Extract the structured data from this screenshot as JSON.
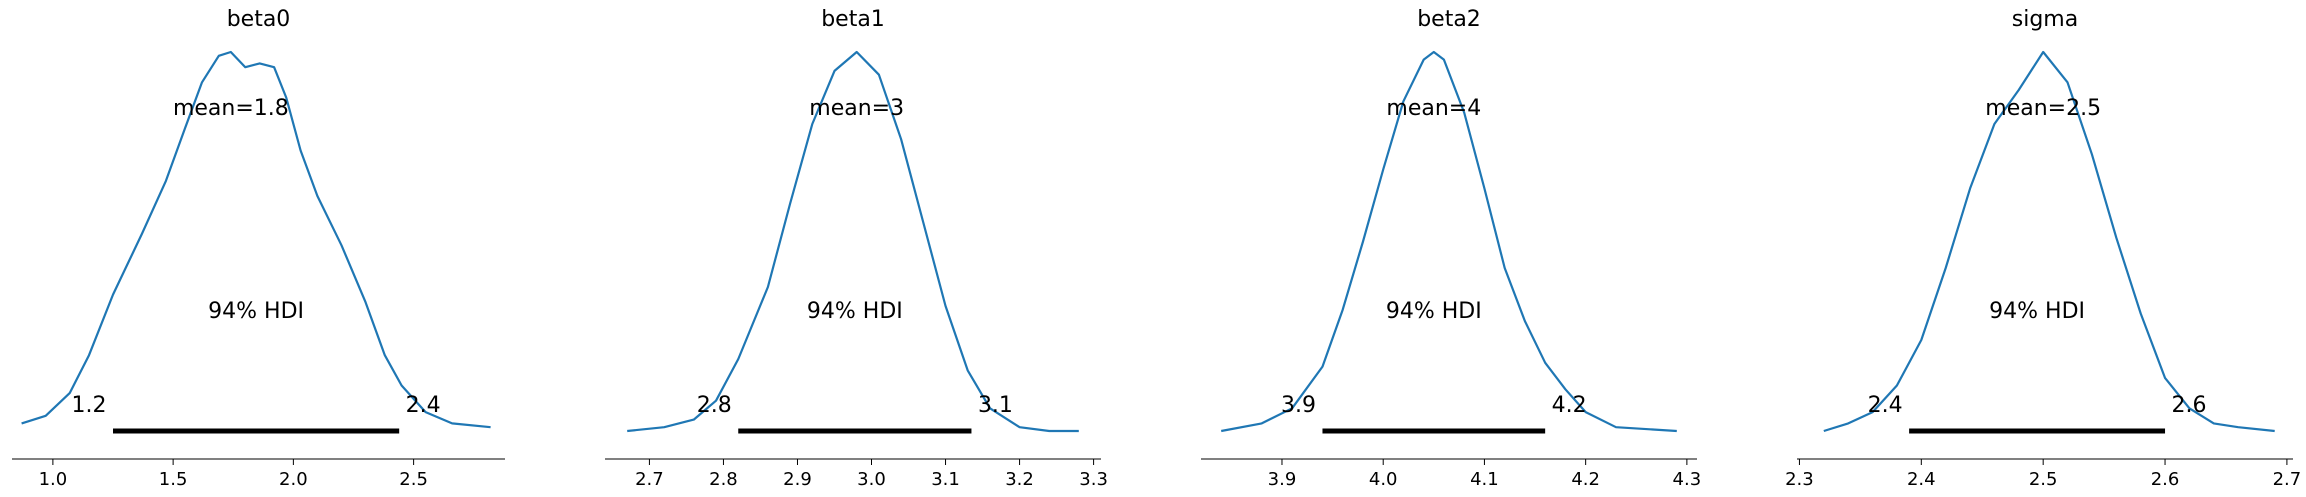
{
  "colors": {
    "curve": "#1f77b4",
    "hdi_bar": "#000000",
    "text": "#000000",
    "background": "#ffffff"
  },
  "chart_data": [
    {
      "type": "line",
      "title": "beta0",
      "mean_label": "mean=1.8",
      "hdi_label": "94% HDI",
      "hdi_low_label": "1.2",
      "hdi_high_label": "2.4",
      "hdi": [
        1.25,
        2.44
      ],
      "xlim": [
        0.83,
        2.88
      ],
      "xticks": [
        1.0,
        1.5,
        2.0,
        2.5
      ],
      "xtick_labels": [
        "1.0",
        "1.5",
        "2.0",
        "2.5"
      ],
      "x": [
        0.87,
        0.97,
        1.07,
        1.15,
        1.25,
        1.37,
        1.47,
        1.55,
        1.62,
        1.69,
        1.74,
        1.8,
        1.86,
        1.92,
        1.97,
        2.03,
        2.1,
        2.2,
        2.3,
        2.38,
        2.45,
        2.55,
        2.66,
        2.82
      ],
      "density": [
        0.02,
        0.04,
        0.1,
        0.2,
        0.36,
        0.52,
        0.66,
        0.8,
        0.92,
        0.99,
        1.0,
        0.96,
        0.97,
        0.96,
        0.88,
        0.74,
        0.62,
        0.49,
        0.34,
        0.2,
        0.12,
        0.05,
        0.02,
        0.01
      ]
    },
    {
      "type": "line",
      "title": "beta1",
      "mean_label": "mean=3",
      "hdi_label": "94% HDI",
      "hdi_low_label": "2.8",
      "hdi_high_label": "3.1",
      "hdi": [
        2.82,
        3.135
      ],
      "xlim": [
        2.64,
        3.31
      ],
      "xticks": [
        2.7,
        2.8,
        2.9,
        3.0,
        3.1,
        3.2,
        3.3
      ],
      "xtick_labels": [
        "2.7",
        "2.8",
        "2.9",
        "3.0",
        "3.1",
        "3.2",
        "3.3"
      ],
      "x": [
        2.67,
        2.72,
        2.76,
        2.79,
        2.82,
        2.86,
        2.89,
        2.92,
        2.95,
        2.98,
        3.01,
        3.04,
        3.07,
        3.1,
        3.13,
        3.16,
        3.2,
        3.24,
        3.28
      ],
      "density": [
        0.0,
        0.01,
        0.03,
        0.08,
        0.19,
        0.38,
        0.6,
        0.81,
        0.95,
        1.0,
        0.94,
        0.77,
        0.55,
        0.33,
        0.16,
        0.06,
        0.01,
        0.0,
        0.0
      ]
    },
    {
      "type": "line",
      "title": "beta2",
      "mean_label": "mean=4",
      "hdi_label": "94% HDI",
      "hdi_low_label": "3.9",
      "hdi_high_label": "4.2",
      "hdi": [
        3.94,
        4.16
      ],
      "xlim": [
        3.82,
        4.31
      ],
      "xticks": [
        3.9,
        4.0,
        4.1,
        4.2,
        4.3
      ],
      "xtick_labels": [
        "3.9",
        "4.0",
        "4.1",
        "4.2",
        "4.3"
      ],
      "x": [
        3.84,
        3.88,
        3.91,
        3.94,
        3.96,
        3.98,
        4.0,
        4.02,
        4.04,
        4.05,
        4.06,
        4.08,
        4.1,
        4.12,
        4.14,
        4.16,
        4.18,
        4.2,
        4.23,
        4.29
      ],
      "density": [
        0.0,
        0.02,
        0.06,
        0.17,
        0.32,
        0.5,
        0.69,
        0.87,
        0.98,
        1.0,
        0.98,
        0.84,
        0.64,
        0.43,
        0.29,
        0.18,
        0.11,
        0.05,
        0.01,
        0.0
      ]
    },
    {
      "type": "line",
      "title": "sigma",
      "mean_label": "mean=2.5",
      "hdi_label": "94% HDI",
      "hdi_low_label": "2.4",
      "hdi_high_label": "2.6",
      "hdi": [
        2.39,
        2.6
      ],
      "xlim": [
        2.298,
        2.705
      ],
      "xticks": [
        2.3,
        2.4,
        2.5,
        2.6,
        2.7
      ],
      "xtick_labels": [
        "2.3",
        "2.4",
        "2.5",
        "2.6",
        "2.7"
      ],
      "x": [
        2.32,
        2.34,
        2.36,
        2.38,
        2.4,
        2.42,
        2.44,
        2.46,
        2.48,
        2.5,
        2.52,
        2.54,
        2.56,
        2.58,
        2.6,
        2.62,
        2.64,
        2.66,
        2.69
      ],
      "density": [
        0.0,
        0.02,
        0.05,
        0.12,
        0.24,
        0.43,
        0.64,
        0.81,
        0.9,
        1.0,
        0.92,
        0.73,
        0.51,
        0.31,
        0.14,
        0.06,
        0.02,
        0.01,
        0.0
      ]
    }
  ]
}
